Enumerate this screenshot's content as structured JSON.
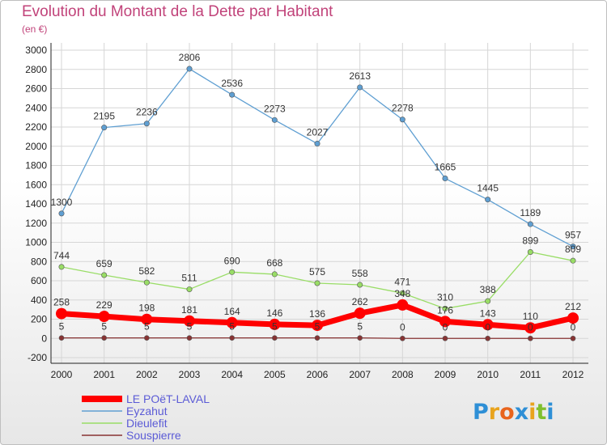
{
  "chart_data": {
    "type": "line",
    "title": "Evolution du Montant de la Dette par Habitant",
    "subtitle": "(en €)",
    "xlabel": "",
    "ylabel": "",
    "categories": [
      "2000",
      "2001",
      "2002",
      "2003",
      "2004",
      "2005",
      "2006",
      "2007",
      "2008",
      "2009",
      "2010",
      "2011",
      "2012"
    ],
    "ylim": [
      -200,
      3000
    ],
    "yticks": [
      "-200",
      "0",
      "200",
      "400",
      "600",
      "800",
      "1000",
      "1200",
      "1400",
      "1600",
      "1800",
      "2000",
      "2200",
      "2400",
      "2600",
      "2800",
      "3000"
    ],
    "grid": true,
    "legend_position": "bottom-left",
    "series": [
      {
        "name": "LE POëT-LAVAL",
        "color": "#ff0000",
        "values": [
          258,
          229,
          198,
          181,
          164,
          146,
          136,
          262,
          348,
          176,
          143,
          110,
          212
        ]
      },
      {
        "name": "Eyzahut",
        "color": "#5f9fd2",
        "values": [
          1300,
          2195,
          2236,
          2806,
          2536,
          2273,
          2027,
          2613,
          2278,
          1665,
          1445,
          1189,
          957
        ]
      },
      {
        "name": "Dieulefit",
        "color": "#99dd66",
        "values": [
          744,
          659,
          582,
          511,
          690,
          668,
          575,
          558,
          471,
          310,
          388,
          899,
          809
        ]
      },
      {
        "name": "Souspierre",
        "color": "#883333",
        "values": [
          5,
          5,
          5,
          5,
          5,
          5,
          5,
          5,
          0,
          0,
          0,
          0,
          0
        ]
      }
    ]
  },
  "logo": {
    "text": "Proxiti",
    "letters": [
      "P",
      "r",
      "o",
      "x",
      "i",
      "t",
      "i"
    ],
    "colors": [
      "#2e8fd6",
      "#e8a31d",
      "#e8641d",
      "#2e8fd6",
      "#e8a31d",
      "#7fbf2e",
      "#2e8fd6"
    ]
  }
}
